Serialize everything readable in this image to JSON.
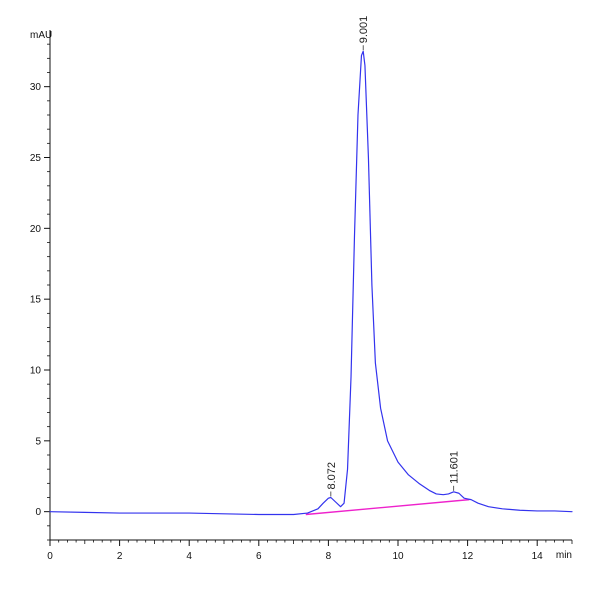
{
  "chart_data": {
    "type": "line",
    "title": "",
    "xlabel": "min",
    "ylabel": "mAU",
    "xlim": [
      0,
      15
    ],
    "ylim": [
      -2,
      34
    ],
    "x_ticks": [
      {
        "value": 0,
        "label": "0"
      },
      {
        "value": 2,
        "label": "2"
      },
      {
        "value": 4,
        "label": "4"
      },
      {
        "value": 6,
        "label": "6"
      },
      {
        "value": 8,
        "label": "8"
      },
      {
        "value": 10,
        "label": "10"
      },
      {
        "value": 12,
        "label": "12"
      },
      {
        "value": 14,
        "label": "14"
      }
    ],
    "y_ticks": [
      {
        "value": 0,
        "label": "0"
      },
      {
        "value": 5,
        "label": "5"
      },
      {
        "value": 10,
        "label": "10"
      },
      {
        "value": 15,
        "label": "15"
      },
      {
        "value": 20,
        "label": "20"
      },
      {
        "value": 25,
        "label": "25"
      },
      {
        "value": 30,
        "label": "30"
      }
    ],
    "grid": false,
    "legend": "none",
    "colors": {
      "trace": "#3333ee",
      "baseline": "#ee22cc",
      "axis": "#111111"
    },
    "series": [
      {
        "x": [
          0,
          1,
          2,
          3,
          4,
          5,
          6,
          6.5,
          7,
          7.4,
          7.7,
          7.85,
          8.0,
          8.07,
          8.2,
          8.35,
          8.45,
          8.55,
          8.65,
          8.75,
          8.85,
          8.95,
          9.0,
          9.05,
          9.15,
          9.25,
          9.35,
          9.5,
          9.7,
          10.0,
          10.3,
          10.6,
          10.9,
          11.1,
          11.3,
          11.45,
          11.6,
          11.75,
          11.9,
          12.0,
          12.1,
          12.3,
          12.6,
          13.0,
          13.5,
          14.0,
          14.5,
          15.0
        ],
        "y": [
          0.0,
          -0.05,
          -0.1,
          -0.1,
          -0.1,
          -0.15,
          -0.2,
          -0.2,
          -0.2,
          -0.1,
          0.2,
          0.6,
          0.95,
          1.0,
          0.7,
          0.35,
          0.6,
          3.0,
          9.5,
          19.5,
          28.0,
          32.2,
          32.5,
          31.5,
          25.0,
          16.0,
          10.5,
          7.3,
          5.0,
          3.5,
          2.6,
          2.0,
          1.5,
          1.25,
          1.2,
          1.25,
          1.4,
          1.3,
          0.95,
          0.9,
          0.85,
          0.6,
          0.35,
          0.2,
          0.1,
          0.05,
          0.05,
          0.0
        ]
      }
    ],
    "baseline_segments": [
      {
        "x": [
          7.35,
          12.05
        ],
        "y": [
          -0.2,
          0.85
        ]
      }
    ],
    "peaks": [
      {
        "label": "8.072",
        "x": 8.07,
        "y": 1.0
      },
      {
        "label": "9.001",
        "x": 9.0,
        "y": 32.5
      },
      {
        "label": "11.601",
        "x": 11.6,
        "y": 1.4
      }
    ]
  }
}
